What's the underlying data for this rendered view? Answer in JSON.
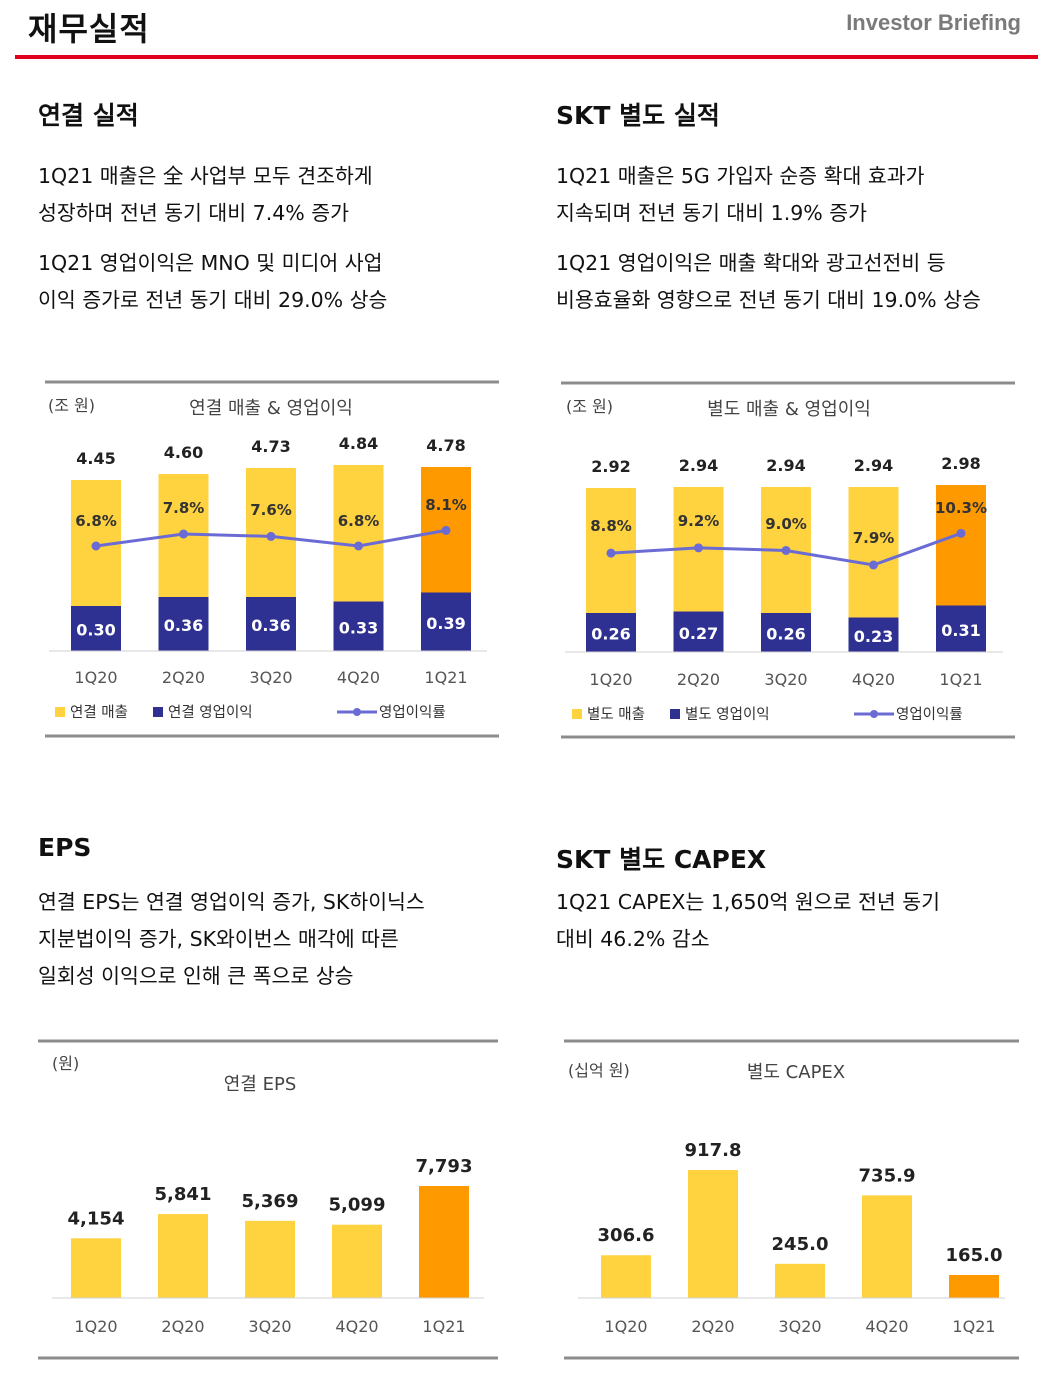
{
  "header": {
    "title": "재무실적",
    "brand": "Investor Briefing"
  },
  "sections": {
    "consolidated": {
      "title": "연결 실적",
      "para1": [
        "1Q21 매출은 全 사업부 모두 견조하게",
        "성장하며 전년 동기 대비 7.4% 증가"
      ],
      "para2": [
        "1Q21 영업이익은 MNO 및 미디어 사업",
        "이익 증가로 전년 동기 대비 29.0% 상승"
      ]
    },
    "separate": {
      "title": "SKT 별도 실적",
      "para1": [
        "1Q21 매출은 5G 가입자 순증 확대 효과가",
        "지속되며 전년 동기 대비 1.9% 증가"
      ],
      "para2": [
        "1Q21 영업이익은 매출 확대와 광고선전비 등",
        "비용효율화 영향으로 전년 동기 대비 19.0% 상승"
      ]
    },
    "eps": {
      "title": "EPS",
      "para": [
        "연결 EPS는 연결 영업이익 증가, SK하이닉스",
        "지분법이익 증가, SK와이번스 매각에 따른",
        "일회성 이익으로 인해 큰 폭으로 상승"
      ]
    },
    "capex": {
      "title": "SKT 별도 CAPEX",
      "para": [
        "1Q21 CAPEX는 1,650억 원으로 전년 동기",
        "대비 46.2% 감소"
      ]
    }
  },
  "colors": {
    "yellow": "#FFD23F",
    "orange": "#FF9900",
    "navy": "#2E3192",
    "line": "#6B6BD4",
    "accent_red": "#E3001B"
  },
  "chart_data": [
    {
      "id": "consolidated",
      "type": "bar",
      "title": "연결 매출 & 영업이익",
      "unit": "(조 원)",
      "categories": [
        "1Q20",
        "2Q20",
        "3Q20",
        "4Q20",
        "1Q21"
      ],
      "series": [
        {
          "name": "연결 매출",
          "values": [
            4.45,
            4.6,
            4.73,
            4.84,
            4.78
          ]
        },
        {
          "name": "연결 영업이익",
          "values": [
            0.3,
            0.36,
            0.36,
            0.33,
            0.39
          ]
        },
        {
          "name": "영업이익률",
          "type": "line",
          "values": [
            6.8,
            7.8,
            7.6,
            6.8,
            8.1
          ]
        }
      ],
      "value_labels": [
        "4.45",
        "4.60",
        "4.73",
        "4.84",
        "4.78"
      ],
      "op_labels": [
        "0.30",
        "0.36",
        "0.36",
        "0.33",
        "0.39"
      ],
      "margin_labels": [
        "6.8%",
        "7.8%",
        "7.6%",
        "6.8%",
        "8.1%"
      ],
      "legend": [
        "연결 매출",
        "연결 영업이익",
        "영업이익률"
      ],
      "highlight_last": true
    },
    {
      "id": "separate",
      "type": "bar",
      "title": "별도 매출 & 영업이익",
      "unit": "(조 원)",
      "categories": [
        "1Q20",
        "2Q20",
        "3Q20",
        "4Q20",
        "1Q21"
      ],
      "series": [
        {
          "name": "별도 매출",
          "values": [
            2.92,
            2.94,
            2.94,
            2.94,
            2.98
          ]
        },
        {
          "name": "별도 영업이익",
          "values": [
            0.26,
            0.27,
            0.26,
            0.23,
            0.31
          ]
        },
        {
          "name": "영업이익률",
          "type": "line",
          "values": [
            8.8,
            9.2,
            9.0,
            7.9,
            10.3
          ]
        }
      ],
      "value_labels": [
        "2.92",
        "2.94",
        "2.94",
        "2.94",
        "2.98"
      ],
      "op_labels": [
        "0.26",
        "0.27",
        "0.26",
        "0.23",
        "0.31"
      ],
      "margin_labels": [
        "8.8%",
        "9.2%",
        "9.0%",
        "7.9%",
        "10.3%"
      ],
      "legend": [
        "별도 매출",
        "별도 영업이익",
        "영업이익률"
      ],
      "highlight_last": true
    },
    {
      "id": "eps",
      "type": "bar",
      "title": "연결 EPS",
      "unit": "(원)",
      "categories": [
        "1Q20",
        "2Q20",
        "3Q20",
        "4Q20",
        "1Q21"
      ],
      "values": [
        4154,
        5841,
        5369,
        5099,
        7793
      ],
      "value_labels": [
        "4,154",
        "5,841",
        "5,369",
        "5,099",
        "7,793"
      ],
      "highlight_last": true
    },
    {
      "id": "capex",
      "type": "bar",
      "title": "별도 CAPEX",
      "unit": "(십억 원)",
      "categories": [
        "1Q20",
        "2Q20",
        "3Q20",
        "4Q20",
        "1Q21"
      ],
      "values": [
        306.6,
        917.8,
        245.0,
        735.9,
        165.0
      ],
      "value_labels": [
        "306.6",
        "917.8",
        "245.0",
        "735.9",
        "165.0"
      ],
      "highlight_last": true
    }
  ]
}
